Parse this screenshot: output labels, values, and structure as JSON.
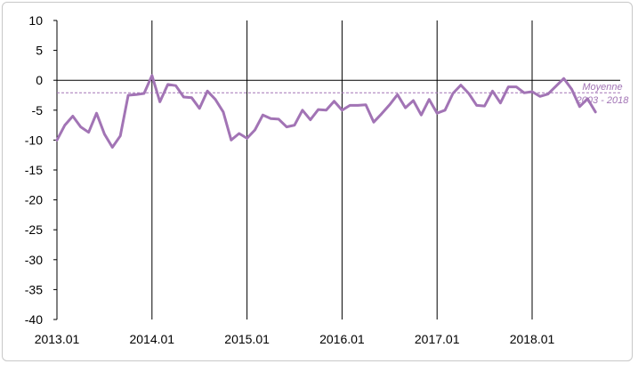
{
  "chart_data": {
    "type": "line",
    "title": "",
    "xlabel": "",
    "ylabel": "",
    "ylim": [
      -40,
      10
    ],
    "yticks": [
      10,
      5,
      0,
      -5,
      -10,
      -15,
      -20,
      -25,
      -30,
      -35,
      -40
    ],
    "xtick_labels": [
      "2013.01",
      "2014.01",
      "2015.01",
      "2016.01",
      "2017.01",
      "2018.01"
    ],
    "grid": false,
    "year_separators": true,
    "series": [
      {
        "name": "",
        "color": "#a274b5",
        "x_start": "2013.01",
        "frequency": "monthly",
        "values": [
          -10.0,
          -7.5,
          -6.0,
          -7.8,
          -8.7,
          -5.5,
          -9.0,
          -11.2,
          -9.3,
          -2.5,
          -2.4,
          -2.2,
          0.8,
          -3.6,
          -0.7,
          -0.9,
          -2.8,
          -2.9,
          -4.7,
          -1.8,
          -3.2,
          -5.3,
          -10.0,
          -8.9,
          -9.7,
          -8.3,
          -5.8,
          -6.4,
          -6.5,
          -7.8,
          -7.5,
          -5.0,
          -6.6,
          -4.9,
          -5.0,
          -3.5,
          -5.0,
          -4.2,
          -4.2,
          -4.1,
          -7.0,
          -5.6,
          -4.1,
          -2.4,
          -4.6,
          -3.4,
          -5.8,
          -3.2,
          -5.5,
          -5.0,
          -2.2,
          -0.8,
          -2.2,
          -4.2,
          -4.3,
          -1.8,
          -3.8,
          -1.1,
          -1.1,
          -2.1,
          -1.9,
          -2.7,
          -2.3,
          -1.0,
          0.3,
          -1.5,
          -4.4,
          -3.1,
          -5.3
        ]
      }
    ],
    "reference_line": {
      "label_line1": "Moyenne",
      "label_line2": "2003 - 2018",
      "value": -2.1,
      "color": "#a274b5"
    }
  }
}
